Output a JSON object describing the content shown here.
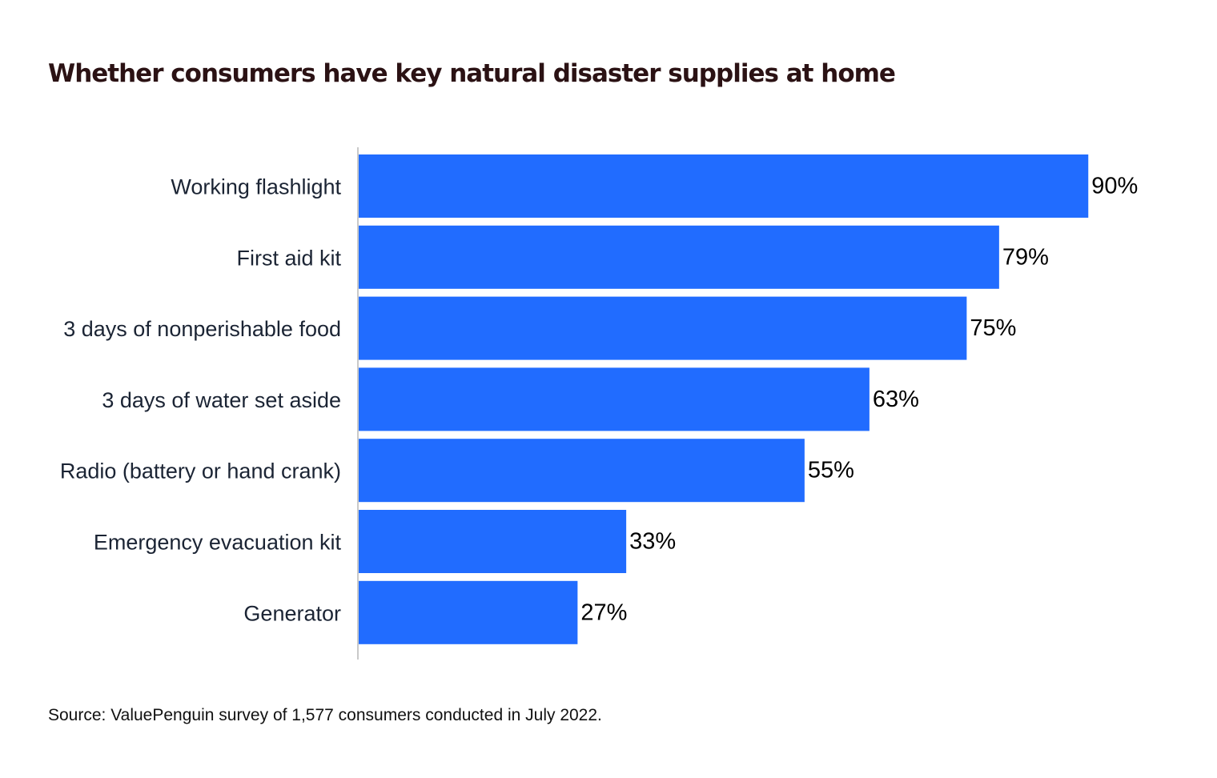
{
  "chart_data": {
    "type": "bar",
    "orientation": "horizontal",
    "title": "Whether consumers have key natural disaster supplies at home",
    "categories": [
      "Working flashlight",
      "First aid kit",
      "3 days of nonperishable food",
      "3 days of water set aside",
      "Radio (battery or hand crank)",
      "Emergency evacuation kit",
      "Generator"
    ],
    "values": [
      90,
      79,
      75,
      63,
      55,
      33,
      27
    ],
    "value_labels": [
      "90%",
      "79%",
      "75%",
      "63%",
      "55%",
      "33%",
      "27%"
    ],
    "unit": "%",
    "xlim": [
      0,
      100
    ],
    "grid": false,
    "bar_color": "#216cff",
    "axis_color": "#c9c9c9"
  },
  "source": "Source: ValuePenguin survey of 1,577 consumers conducted in July 2022."
}
